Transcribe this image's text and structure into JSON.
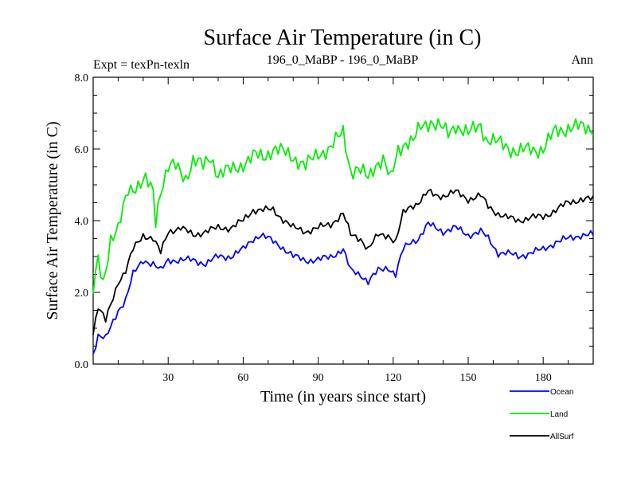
{
  "chart_data": {
    "type": "line",
    "title": "Surface Air Temperature (in C)",
    "subtitle_left": "Expt = texPn-texln",
    "subtitle_center": "196_0_MaBP - 196_0_MaBP",
    "subtitle_right": "Ann",
    "xlabel": "Time (in years since start)",
    "ylabel": "Surface Air Temperature (in C)",
    "xlim": [
      0,
      200
    ],
    "ylim": [
      0,
      8
    ],
    "x_ticks": [
      30,
      60,
      90,
      120,
      150,
      180
    ],
    "x_tick_labels": [
      "30",
      "60",
      "90",
      "120",
      "150",
      "180"
    ],
    "y_ticks": [
      0,
      2,
      4,
      6,
      8
    ],
    "y_tick_labels": [
      "0.0",
      "2.0",
      "4.0",
      "6.0",
      "8.0"
    ],
    "series": [
      {
        "name": "Ocean",
        "color": "#0000ff",
        "points": [
          [
            0,
            0.3
          ],
          [
            2,
            0.8
          ],
          [
            5,
            0.7
          ],
          [
            10,
            1.5
          ],
          [
            13,
            1.8
          ],
          [
            16,
            2.5
          ],
          [
            20,
            2.9
          ],
          [
            24,
            2.8
          ],
          [
            27,
            2.6
          ],
          [
            30,
            2.9
          ],
          [
            40,
            2.9
          ],
          [
            45,
            2.8
          ],
          [
            50,
            3.0
          ],
          [
            55,
            3.0
          ],
          [
            60,
            3.2
          ],
          [
            64,
            3.5
          ],
          [
            67,
            3.6
          ],
          [
            70,
            3.5
          ],
          [
            75,
            3.3
          ],
          [
            80,
            3.0
          ],
          [
            85,
            2.9
          ],
          [
            90,
            2.9
          ],
          [
            95,
            3.0
          ],
          [
            100,
            3.2
          ],
          [
            103,
            2.6
          ],
          [
            107,
            2.5
          ],
          [
            110,
            2.3
          ],
          [
            114,
            2.6
          ],
          [
            118,
            2.7
          ],
          [
            121,
            2.5
          ],
          [
            124,
            3.2
          ],
          [
            127,
            3.4
          ],
          [
            130,
            3.5
          ],
          [
            134,
            3.9
          ],
          [
            137,
            3.8
          ],
          [
            140,
            3.7
          ],
          [
            145,
            3.8
          ],
          [
            150,
            3.6
          ],
          [
            155,
            3.7
          ],
          [
            158,
            3.5
          ],
          [
            162,
            3.1
          ],
          [
            165,
            3.1
          ],
          [
            170,
            3.0
          ],
          [
            175,
            3.1
          ],
          [
            180,
            3.2
          ],
          [
            185,
            3.4
          ],
          [
            190,
            3.5
          ],
          [
            195,
            3.6
          ],
          [
            200,
            3.6
          ]
        ]
      },
      {
        "name": "Land",
        "color": "#00ee00",
        "points": [
          [
            0,
            2.0
          ],
          [
            2,
            2.9
          ],
          [
            4,
            2.3
          ],
          [
            7,
            3.5
          ],
          [
            10,
            3.7
          ],
          [
            12,
            4.3
          ],
          [
            14,
            4.9
          ],
          [
            18,
            5.0
          ],
          [
            21,
            5.1
          ],
          [
            24,
            4.8
          ],
          [
            25,
            4.0
          ],
          [
            27,
            4.9
          ],
          [
            30,
            5.5
          ],
          [
            33,
            5.5
          ],
          [
            37,
            5.2
          ],
          [
            40,
            5.7
          ],
          [
            44,
            5.5
          ],
          [
            47,
            5.8
          ],
          [
            50,
            5.3
          ],
          [
            55,
            5.4
          ],
          [
            60,
            5.6
          ],
          [
            65,
            5.8
          ],
          [
            68,
            5.8
          ],
          [
            72,
            6.0
          ],
          [
            76,
            5.9
          ],
          [
            80,
            5.8
          ],
          [
            85,
            5.5
          ],
          [
            90,
            5.9
          ],
          [
            95,
            6.0
          ],
          [
            100,
            6.5
          ],
          [
            103,
            5.4
          ],
          [
            106,
            5.4
          ],
          [
            110,
            5.2
          ],
          [
            113,
            5.6
          ],
          [
            116,
            5.7
          ],
          [
            119,
            5.1
          ],
          [
            122,
            6.0
          ],
          [
            125,
            6.2
          ],
          [
            128,
            6.2
          ],
          [
            131,
            6.6
          ],
          [
            135,
            6.8
          ],
          [
            139,
            6.6
          ],
          [
            142,
            6.4
          ],
          [
            145,
            6.7
          ],
          [
            150,
            6.4
          ],
          [
            155,
            6.7
          ],
          [
            157,
            6.3
          ],
          [
            160,
            6.2
          ],
          [
            165,
            6.1
          ],
          [
            170,
            5.9
          ],
          [
            175,
            6.0
          ],
          [
            180,
            6.0
          ],
          [
            185,
            6.5
          ],
          [
            190,
            6.6
          ],
          [
            195,
            6.6
          ],
          [
            200,
            6.6
          ]
        ]
      },
      {
        "name": "AllSurf",
        "color": "#000000",
        "points": [
          [
            0,
            0.9
          ],
          [
            2,
            1.6
          ],
          [
            5,
            1.2
          ],
          [
            10,
            2.3
          ],
          [
            13,
            2.6
          ],
          [
            16,
            3.2
          ],
          [
            20,
            3.6
          ],
          [
            24,
            3.5
          ],
          [
            27,
            3.1
          ],
          [
            30,
            3.7
          ],
          [
            35,
            3.8
          ],
          [
            40,
            3.6
          ],
          [
            45,
            3.7
          ],
          [
            50,
            3.8
          ],
          [
            55,
            3.8
          ],
          [
            60,
            4.0
          ],
          [
            64,
            4.3
          ],
          [
            68,
            4.3
          ],
          [
            72,
            4.3
          ],
          [
            75,
            4.1
          ],
          [
            80,
            3.8
          ],
          [
            85,
            3.7
          ],
          [
            90,
            3.8
          ],
          [
            95,
            3.9
          ],
          [
            100,
            4.2
          ],
          [
            103,
            3.6
          ],
          [
            107,
            3.5
          ],
          [
            110,
            3.2
          ],
          [
            114,
            3.6
          ],
          [
            118,
            3.6
          ],
          [
            121,
            3.4
          ],
          [
            124,
            4.2
          ],
          [
            127,
            4.4
          ],
          [
            130,
            4.5
          ],
          [
            134,
            4.8
          ],
          [
            137,
            4.7
          ],
          [
            140,
            4.7
          ],
          [
            145,
            4.8
          ],
          [
            150,
            4.6
          ],
          [
            155,
            4.7
          ],
          [
            158,
            4.4
          ],
          [
            162,
            4.2
          ],
          [
            165,
            4.1
          ],
          [
            170,
            4.0
          ],
          [
            175,
            4.1
          ],
          [
            180,
            4.1
          ],
          [
            185,
            4.3
          ],
          [
            190,
            4.5
          ],
          [
            195,
            4.6
          ],
          [
            200,
            4.6
          ]
        ]
      }
    ],
    "legend_position": "bottom-right"
  }
}
